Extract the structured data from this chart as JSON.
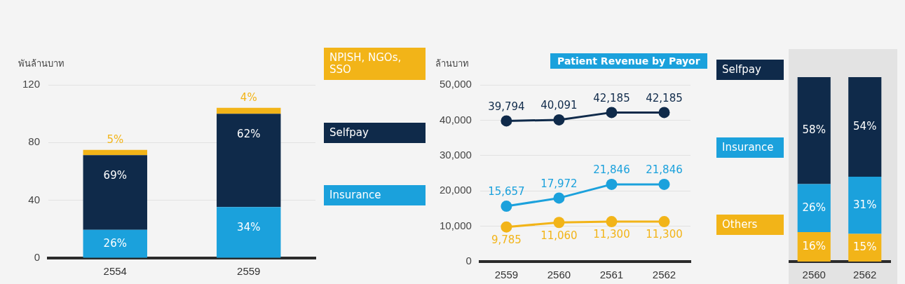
{
  "chart_data": [
    {
      "type": "bar",
      "stacked": true,
      "ylabel": "พันล้านบาท",
      "categories": [
        "2554",
        "2559"
      ],
      "ylim": [
        0,
        120
      ],
      "yticks": [
        0,
        40,
        80,
        120
      ],
      "grid": "y",
      "legend": "right",
      "series": [
        {
          "name": "Insurance",
          "color": "#1ba1dc",
          "values": [
            19.5,
            35.4
          ]
        },
        {
          "name": "Selfpay",
          "color": "#0f2a4a",
          "values": [
            51.8,
            64.5
          ]
        },
        {
          "name": "NPISH, NGOs, SSO",
          "color": "#f2b418",
          "values": [
            3.7,
            4.2
          ]
        }
      ],
      "annotations": [
        {
          "text": "26%",
          "x": "2554",
          "y": 19.5
        },
        {
          "text": "69%",
          "x": "2554",
          "y": 71.3
        },
        {
          "text": "5%",
          "x": "2554",
          "y": 75.0
        },
        {
          "text": "34%",
          "x": "2559",
          "y": 35.4
        },
        {
          "text": "62%",
          "x": "2559",
          "y": 99.9
        },
        {
          "text": "4%",
          "x": "2559",
          "y": 104.1
        }
      ]
    },
    {
      "type": "line",
      "title": "Patient Revenue by Payor",
      "ylabel": "ล้านบาท",
      "categories": [
        "2559",
        "2560",
        "2561",
        "2562"
      ],
      "ylim": [
        0,
        50000
      ],
      "yticks": [
        0,
        {
          "value": 10000,
          "label": "10,000"
        },
        {
          "value": 20000,
          "label": "20,000"
        },
        {
          "value": 30000,
          "label": "30,000"
        },
        {
          "value": 40000,
          "label": "40,000"
        },
        {
          "value": 50000,
          "label": "50,000"
        }
      ],
      "grid": "y",
      "legend": "right",
      "marker": "circle",
      "series": [
        {
          "name": "Selfpay",
          "color": "#0f2a4a",
          "values": [
            39794,
            40091,
            42185,
            42185
          ],
          "value_labels": [
            "39,794",
            "40,091",
            "42,185",
            "42,185"
          ]
        },
        {
          "name": "Insurance",
          "color": "#1ba1dc",
          "values": [
            15657,
            17972,
            21846,
            21846
          ],
          "value_labels": [
            "15,657",
            "17,972",
            "21,846",
            "21,846"
          ]
        },
        {
          "name": "Others",
          "color": "#f2b418",
          "values": [
            9785,
            11060,
            11300,
            11300
          ],
          "value_labels": [
            "9,785",
            "11,060",
            "11,300",
            "11,300"
          ]
        }
      ]
    },
    {
      "type": "bar",
      "stacked": true,
      "categories": [
        "2560",
        "2562"
      ],
      "ylim": [
        0,
        100
      ],
      "tick_labels": "x",
      "series": [
        {
          "color": "#f2b418",
          "values": [
            16,
            15
          ],
          "value_labels": [
            "16%",
            "15%"
          ]
        },
        {
          "color": "#1ba1dc",
          "values": [
            26,
            31
          ],
          "value_labels": [
            "26%",
            "31%"
          ]
        },
        {
          "color": "#0f2a4a",
          "values": [
            58,
            54
          ],
          "value_labels": [
            "58%",
            "54%"
          ]
        }
      ]
    }
  ]
}
